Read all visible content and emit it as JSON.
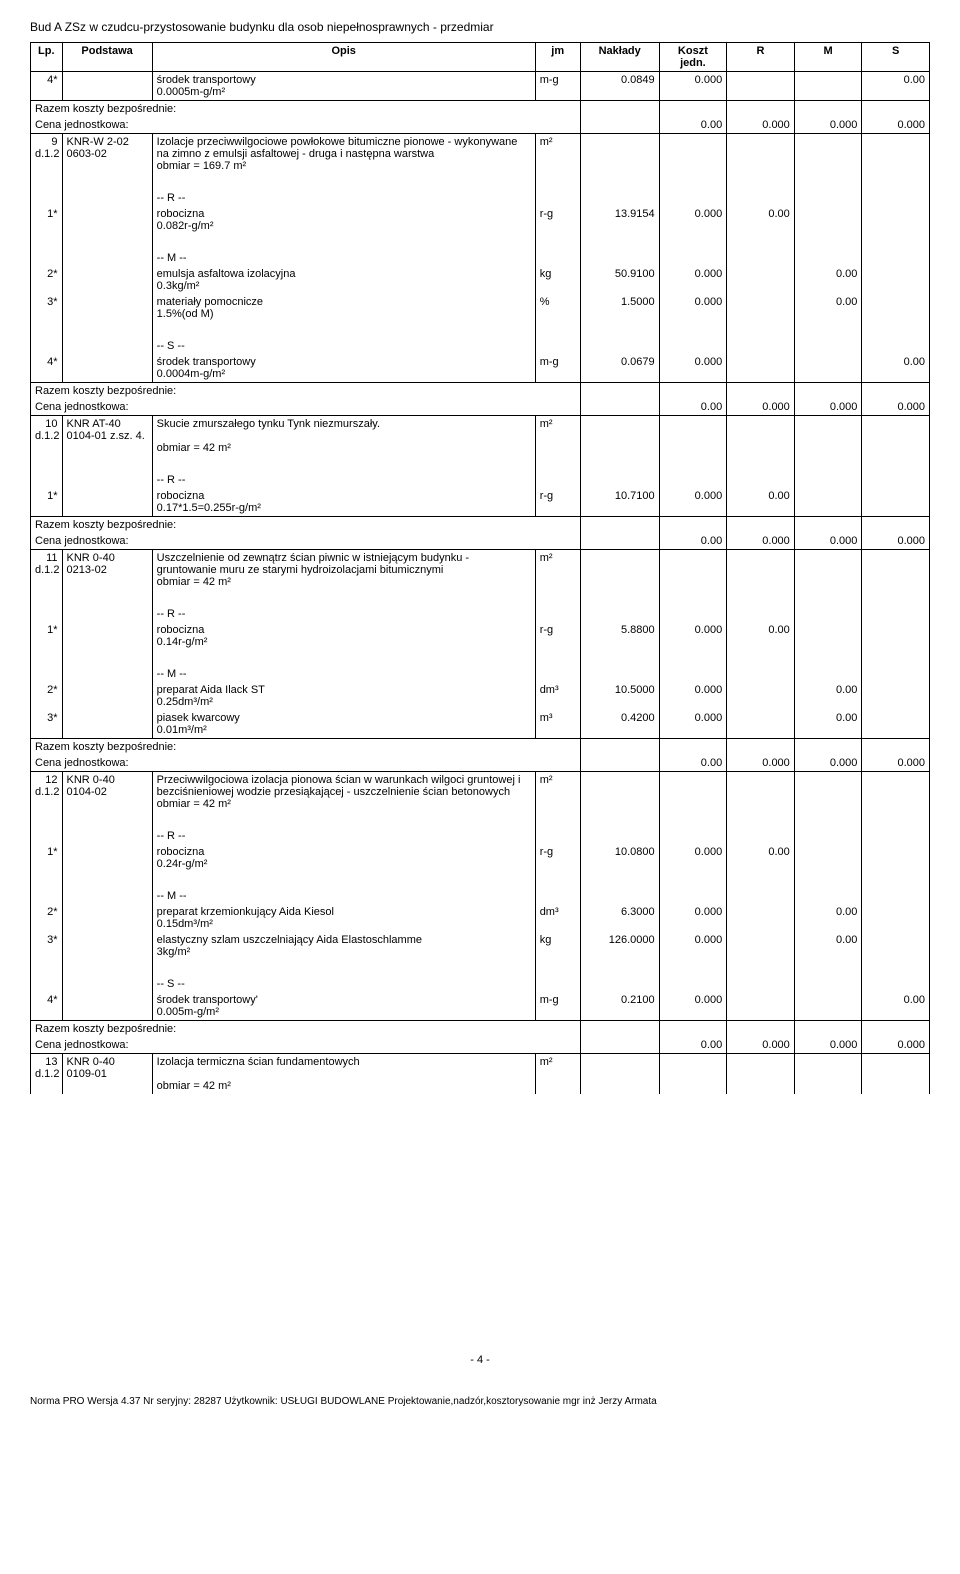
{
  "doc_title": "Bud A ZSz w czudcu-przystosowanie budynku dla osob niepełnosprawnych - przedmiar",
  "columns": [
    "Lp.",
    "Podstawa",
    "Opis",
    "jm",
    "Nakłady",
    "Koszt jedn.",
    "R",
    "M",
    "S"
  ],
  "rows": [
    {
      "lp": "4*",
      "opis": "środek transportowy",
      "jm": "m-g",
      "nak": "0.0849",
      "kj": "0.000",
      "s": "0.00",
      "opis2": "0.0005m-g/m²"
    },
    {
      "razem": "Razem koszty bezpośrednie:"
    },
    {
      "cena": "Cena jednostkowa:",
      "kj": "0.00",
      "r": "0.000",
      "m": "0.000",
      "s": "0.000"
    },
    {
      "lp": "9",
      "pod": "KNR-W 2-02",
      "pod2": "d.1.2 0603-02",
      "opis": "Izolacje przeciwwilgociowe powłokowe bitumiczne pionowe - wykonywane na zimno z emulsji asfaltowej - druga i następna warstwa",
      "opis2": "obmiar  = 169.7 m²",
      "jm": "m²"
    },
    {
      "sep": true
    },
    {
      "opis": "-- R --"
    },
    {
      "lp": "1*",
      "opis": "robocizna",
      "jm": "r-g",
      "nak": "13.9154",
      "kj": "0.000",
      "r": "0.00",
      "opis2": "0.082r-g/m²"
    },
    {
      "sep": true
    },
    {
      "opis": "-- M --"
    },
    {
      "lp": "2*",
      "opis": "emulsja asfaltowa izolacyjna",
      "jm": "kg",
      "nak": "50.9100",
      "kj": "0.000",
      "m": "0.00",
      "opis2": "0.3kg/m²"
    },
    {
      "lp": "3*",
      "opis": "materiały pomocnicze",
      "jm": "%",
      "nak": "1.5000",
      "kj": "0.000",
      "m": "0.00",
      "opis2": "1.5%(od M)"
    },
    {
      "sep": true
    },
    {
      "opis": "-- S --"
    },
    {
      "lp": "4*",
      "opis": "środek transportowy",
      "jm": "m-g",
      "nak": "0.0679",
      "kj": "0.000",
      "s": "0.00",
      "opis2": "0.0004m-g/m²"
    },
    {
      "razem": "Razem koszty bezpośrednie:"
    },
    {
      "cena": "Cena jednostkowa:",
      "kj": "0.00",
      "r": "0.000",
      "m": "0.000",
      "s": "0.000"
    },
    {
      "lp": "10",
      "pod": "KNR AT-40",
      "pod2": "d.1.2 0104-01 z.sz. 4.",
      "opis": "Skucie zmurszałego tynku Tynk niezmurszały.",
      "opis3": "obmiar  = 42 m²",
      "jm": "m²"
    },
    {
      "sep": true
    },
    {
      "opis": "-- R --"
    },
    {
      "lp": "1*",
      "opis": "robocizna",
      "jm": "r-g",
      "nak": "10.7100",
      "kj": "0.000",
      "r": "0.00",
      "opis2": "0.17*1.5=0.255r-g/m²"
    },
    {
      "razem": "Razem koszty bezpośrednie:"
    },
    {
      "cena": "Cena jednostkowa:",
      "kj": "0.00",
      "r": "0.000",
      "m": "0.000",
      "s": "0.000"
    },
    {
      "lp": "11",
      "pod": "KNR 0-40",
      "pod2": "d.1.2 0213-02",
      "opis": "Uszczelnienie od zewnątrz ścian piwnic w istniejącym budynku - gruntowanie muru ze starymi hydroizolacjami bitumicznymi",
      "opis2": "obmiar  = 42 m²",
      "jm": "m²"
    },
    {
      "sep": true
    },
    {
      "opis": "-- R --"
    },
    {
      "lp": "1*",
      "opis": "robocizna",
      "jm": "r-g",
      "nak": "5.8800",
      "kj": "0.000",
      "r": "0.00",
      "opis2": "0.14r-g/m²"
    },
    {
      "sep": true
    },
    {
      "opis": "-- M --"
    },
    {
      "lp": "2*",
      "opis": "preparat Aida Ilack ST",
      "jm": "dm³",
      "nak": "10.5000",
      "kj": "0.000",
      "m": "0.00",
      "opis2": "0.25dm³/m²"
    },
    {
      "lp": "3*",
      "opis": "piasek kwarcowy",
      "jm": "m³",
      "nak": "0.4200",
      "kj": "0.000",
      "m": "0.00",
      "opis2": "0.01m³/m²"
    },
    {
      "razem": "Razem koszty bezpośrednie:"
    },
    {
      "cena": "Cena jednostkowa:",
      "kj": "0.00",
      "r": "0.000",
      "m": "0.000",
      "s": "0.000"
    },
    {
      "lp": "12",
      "pod": "KNR 0-40",
      "pod2": "d.1.2 0104-02",
      "opis": "Przeciwwilgociowa izolacja pionowa ścian w warunkach wilgoci gruntowej i bezciśnieniowej wodzie przesiąkającej - uszczelnienie ścian betonowych",
      "opis2": "obmiar  = 42 m²",
      "jm": "m²"
    },
    {
      "sep": true
    },
    {
      "opis": "-- R --"
    },
    {
      "lp": "1*",
      "opis": "robocizna",
      "jm": "r-g",
      "nak": "10.0800",
      "kj": "0.000",
      "r": "0.00",
      "opis2": "0.24r-g/m²"
    },
    {
      "sep": true
    },
    {
      "opis": "-- M --"
    },
    {
      "lp": "2*",
      "opis": "preparat krzemionkujący Aida Kiesol",
      "jm": "dm³",
      "nak": "6.3000",
      "kj": "0.000",
      "m": "0.00",
      "opis2": "0.15dm³/m²"
    },
    {
      "lp": "3*",
      "opis": "elastyczny szlam uszczelniający Aida Elastoschlamme",
      "jm": "kg",
      "nak": "126.0000",
      "kj": "0.000",
      "m": "0.00",
      "opis2": "3kg/m²"
    },
    {
      "sep": true
    },
    {
      "opis": "-- S --"
    },
    {
      "lp": "4*",
      "opis": "środek transportowy'",
      "jm": "m-g",
      "nak": "0.2100",
      "kj": "0.000",
      "s": "0.00",
      "opis2": "0.005m-g/m²"
    },
    {
      "razem": "Razem koszty bezpośrednie:"
    },
    {
      "cena": "Cena jednostkowa:",
      "kj": "0.00",
      "r": "0.000",
      "m": "0.000",
      "s": "0.000"
    },
    {
      "lp": "13",
      "pod": "KNR 0-40",
      "pod2": "d.1.2 0109-01",
      "opis": "Izolacja termiczna ścian fundamentowych",
      "opis3": "obmiar  = 42 m²",
      "jm": "m²"
    }
  ],
  "page_num": "- 4 -",
  "footer_norma": "Norma PRO Wersja 4.37 Nr seryjny: 28287 Użytkownik: USŁUGI BUDOWLANE Projektowanie,nadzór,kosztorysowanie mgr inż Jerzy Armata"
}
